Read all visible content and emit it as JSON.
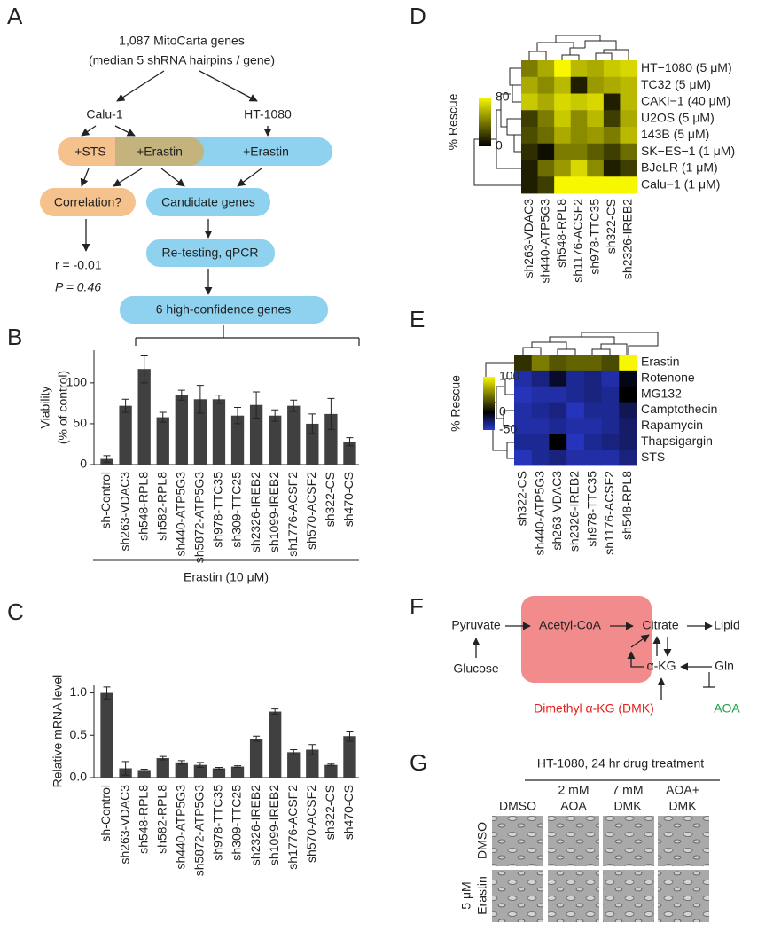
{
  "panel_labels": [
    "A",
    "B",
    "C",
    "D",
    "E",
    "F",
    "G"
  ],
  "flow": {
    "source_line1": "1,087 MitoCarta genes",
    "source_line2": "(median 5 shRNA hairpins / gene)",
    "cell_line_1": "Calu-1",
    "cell_line_2": "HT-1080",
    "treat_sts": "+STS",
    "treat_erastin_1": "+Erastin",
    "treat_erastin_2": "+Erastin",
    "correlation": "Correlation?",
    "candidates": "Candidate genes",
    "r_text": "r = -0.01",
    "p_text": "P = 0.46",
    "retesting": "Re-testing, qPCR",
    "final": "6 high-confidence genes"
  },
  "chart_data": [
    {
      "type": "bar",
      "ylabel": [
        "Viability",
        "(% of control)"
      ],
      "annotation": "Erastin (10 μM)",
      "categories": [
        "sh-Control",
        "sh263-VDAC3",
        "sh548-RPL8",
        "sh582-RPL8",
        "sh440-ATP5G3",
        "sh5872-ATP5G3",
        "sh978-TTC35",
        "sh309-TTC25",
        "sh2326-IREB2",
        "sh1099-IREB2",
        "sh1776-ACSF2",
        "sh570-ACSF2",
        "sh322-CS",
        "sh470-CS"
      ],
      "values": [
        7,
        72,
        117,
        58,
        85,
        80,
        80,
        60,
        73,
        60,
        72,
        50,
        62,
        28
      ],
      "errors": [
        4,
        8,
        17,
        6,
        6,
        17,
        5,
        10,
        16,
        7,
        7,
        12,
        19,
        5
      ],
      "ylim": [
        0,
        140
      ],
      "yticks": [
        0,
        50,
        100
      ],
      "color": "#404040"
    },
    {
      "type": "bar",
      "ylabel": [
        "Relative mRNA level"
      ],
      "categories": [
        "sh-Control",
        "sh263-VDAC3",
        "sh548-RPL8",
        "sh582-RPL8",
        "sh440-ATP5G3",
        "sh5872-ATP5G3",
        "sh978-TTC35",
        "sh309-TTC25",
        "sh2326-IREB2",
        "sh1099-IREB2",
        "sh1776-ACSF2",
        "sh570-ACSF2",
        "sh322-CS",
        "sh470-CS"
      ],
      "values": [
        1.0,
        0.11,
        0.09,
        0.23,
        0.18,
        0.15,
        0.11,
        0.13,
        0.46,
        0.78,
        0.3,
        0.33,
        0.15,
        0.49
      ],
      "errors": [
        0.07,
        0.08,
        0.01,
        0.02,
        0.02,
        0.03,
        0.01,
        0.01,
        0.03,
        0.03,
        0.03,
        0.06,
        0.01,
        0.06
      ],
      "ylim": [
        0,
        1.1
      ],
      "yticks": [
        {
          "value": 0,
          "label": "0.0"
        },
        {
          "value": 0.5,
          "label": "0.5"
        },
        {
          "value": 1,
          "label": "1.0"
        }
      ],
      "color": "#404040"
    },
    {
      "type": "heatmap",
      "colorbar_label": "% Rescue",
      "columns": [
        "sh263-VDAC3",
        "sh440-ATP5G3",
        "sh548-RPL8",
        "sh1176-ACSF2",
        "sh978-TTC35",
        "sh322-CS",
        "sh2326-IREB2"
      ],
      "rows": [
        "HT−1080 (5 μM)",
        "TC32  (5 μM)",
        "CAKI−1  (40 μM)",
        "U2OS  (5 μM)",
        "143B  (5 μM)",
        "SK−ES−1  (1 μM)",
        "BJeLR  (1 μM)",
        "Calu−1  (1 μM)"
      ],
      "values": [
        [
          40,
          55,
          80,
          60,
          55,
          65,
          70
        ],
        [
          55,
          45,
          60,
          10,
          50,
          55,
          60
        ],
        [
          65,
          55,
          70,
          65,
          70,
          10,
          60
        ],
        [
          20,
          40,
          65,
          45,
          60,
          20,
          55
        ],
        [
          25,
          35,
          55,
          45,
          50,
          40,
          60
        ],
        [
          15,
          5,
          40,
          40,
          30,
          20,
          35
        ],
        [
          10,
          35,
          50,
          70,
          45,
          10,
          20
        ],
        [
          10,
          20,
          80,
          80,
          80,
          80,
          80
        ]
      ],
      "color_stops": [
        0,
        80
      ],
      "colors": [
        "#000000",
        "#f7f700"
      ],
      "cticks": [
        0,
        80
      ]
    },
    {
      "type": "heatmap",
      "colorbar_label": "% Rescue",
      "columns": [
        "sh322-CS",
        "sh440-ATP5G3",
        "sh263-VDAC3",
        "sh2326-IREB2",
        "sh978-TTC35",
        "sh1176-ACSF2",
        "sh548-RPL8"
      ],
      "rows": [
        "Erastin",
        "Rotenone",
        "MG132",
        "Camptothecin",
        "Rapamycin",
        "Thapsigargin",
        "STS"
      ],
      "values": [
        [
          20,
          50,
          35,
          40,
          40,
          30,
          100
        ],
        [
          -40,
          -30,
          -10,
          -35,
          -30,
          -40,
          -5
        ],
        [
          -45,
          -40,
          -40,
          -35,
          -30,
          -35,
          0
        ],
        [
          -40,
          -35,
          -30,
          -45,
          -35,
          -35,
          -20
        ],
        [
          -40,
          -40,
          -35,
          -40,
          -40,
          -35,
          -25
        ],
        [
          -35,
          -35,
          0,
          -45,
          -35,
          -30,
          -25
        ],
        [
          -45,
          -35,
          -30,
          -40,
          -40,
          -40,
          -30
        ]
      ],
      "color_stops": [
        -50,
        0,
        100
      ],
      "colors": [
        "#2a3ad0",
        "#000000",
        "#f7f700"
      ],
      "cticks": [
        -50,
        0,
        100
      ]
    }
  ],
  "pathway": {
    "pyruvate": "Pyruvate",
    "acetyl_coa": "Acetyl-CoA",
    "citrate": "Citrate",
    "lipid": "Lipid",
    "glucose": "Glucose",
    "akg": "α-KG",
    "gln": "Gln",
    "dmk": "Dimethyl α-KG (DMK)",
    "aoa": "AOA"
  },
  "images": {
    "title": "HT-1080, 24 hr drug treatment",
    "columns": [
      [
        "DMSO"
      ],
      [
        "2 mM",
        "AOA"
      ],
      [
        "7 mM",
        "DMK"
      ],
      [
        "AOA+",
        "DMK"
      ]
    ],
    "rows": [
      [
        "DMSO"
      ],
      [
        "5 μM",
        "Erastin"
      ]
    ]
  }
}
